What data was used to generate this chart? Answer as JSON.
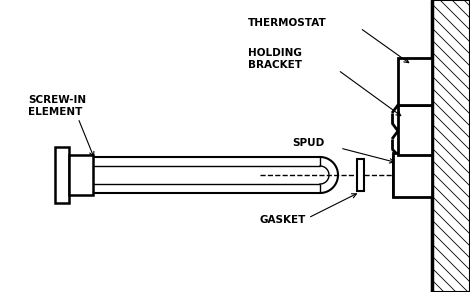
{
  "bg_color": "#ffffff",
  "line_color": "#000000",
  "labels": {
    "thermostat": "THERMOSTAT",
    "holding_bracket": "HOLDING\nBRACKET",
    "spud": "SPUD",
    "gasket": "GASKET",
    "screw_in": "SCREW-IN\nELEMENT"
  },
  "label_fontsize": 7.5,
  "label_fontweight": "bold",
  "fig_w": 4.7,
  "fig_h": 2.92,
  "dpi": 100
}
